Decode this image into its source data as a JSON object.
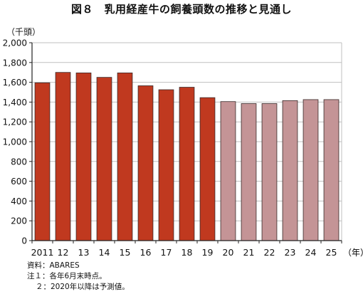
{
  "title": "図８　乳用経産牛の飼養頭数の推移と見通し",
  "unit_label": "（千頭）",
  "x_unit_label": "（年）",
  "notes": [
    "資料：ABARES",
    "注１：各年6月末時点。",
    "２：2020年以降は予測値。"
  ],
  "colors": {
    "actual": "#C0391F",
    "forecast": "#C49496",
    "axis": "#222222",
    "grid": "#BFBFBF"
  },
  "chart_data": {
    "type": "bar",
    "title": "図８　乳用経産牛の飼養頭数の推移と見通し",
    "ylabel": "（千頭）",
    "xlabel": "（年）",
    "ylim": [
      0,
      2000
    ],
    "yticks": [
      0,
      200,
      400,
      600,
      800,
      1000,
      1200,
      1400,
      1600,
      1800,
      2000
    ],
    "ytick_labels": [
      "0",
      "200",
      "400",
      "600",
      "800",
      "1,000",
      "1,200",
      "1,400",
      "1,600",
      "1,800",
      "2,000"
    ],
    "categories": [
      "2011",
      "12",
      "13",
      "14",
      "15",
      "16",
      "17",
      "18",
      "19",
      "20",
      "21",
      "22",
      "23",
      "24",
      "25"
    ],
    "values": [
      1595,
      1700,
      1695,
      1650,
      1695,
      1565,
      1525,
      1550,
      1445,
      1405,
      1385,
      1385,
      1415,
      1425,
      1425
    ],
    "forecast_from_index": 9,
    "grid": true,
    "legend": "none"
  }
}
